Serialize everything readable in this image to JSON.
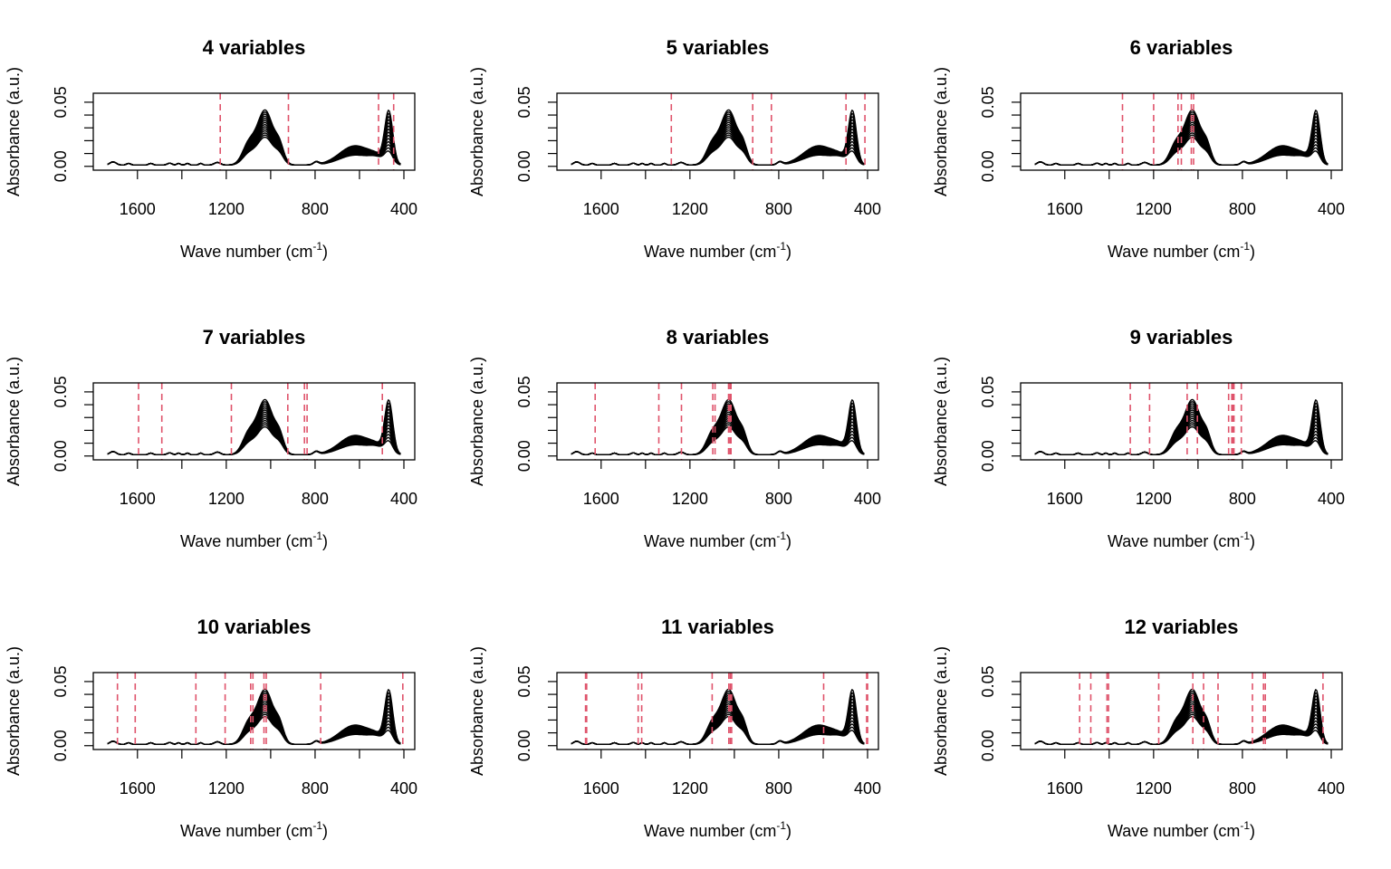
{
  "colors": {
    "spectra": "#000000",
    "selected_variables": "#DF536B",
    "background": "#FFFFFF"
  },
  "chart_data": [
    {
      "type": "line",
      "title": "4 variables",
      "xlabel": "Wave number (cm",
      "xlabel_sup": "-1",
      "xlabel_close": ")",
      "ylabel": "Absorbance (a.u.)",
      "xlim": [
        1750,
        400
      ],
      "ylim": [
        -0.003,
        0.057
      ],
      "xticks": [
        1600,
        1200,
        800,
        400
      ],
      "xtick_labels": [
        "1600",
        "1200",
        "800",
        "400"
      ],
      "yticks": [
        0.0,
        0.05
      ],
      "ytick_labels": [
        "0.00",
        "0.05"
      ],
      "minor_yticks": [
        0.01,
        0.02,
        0.03,
        0.04
      ],
      "selected_wavenumbers": [
        1227,
        920,
        514,
        446
      ]
    },
    {
      "type": "line",
      "title": "5 variables",
      "xlabel": "Wave number (cm",
      "xlabel_sup": "-1",
      "xlabel_close": ")",
      "ylabel": "Absorbance (a.u.)",
      "xlim": [
        1750,
        400
      ],
      "ylim": [
        -0.003,
        0.057
      ],
      "xticks": [
        1600,
        1200,
        800,
        400
      ],
      "xtick_labels": [
        "1600",
        "1200",
        "800",
        "400"
      ],
      "yticks": [
        0.0,
        0.05
      ],
      "ytick_labels": [
        "0.00",
        "0.05"
      ],
      "minor_yticks": [
        0.01,
        0.02,
        0.03,
        0.04
      ],
      "selected_wavenumbers": [
        1284,
        917,
        833,
        497,
        412
      ]
    },
    {
      "type": "line",
      "title": "6 variables",
      "xlabel": "Wave number (cm",
      "xlabel_sup": "-1",
      "xlabel_close": ")",
      "ylabel": "Absorbance (a.u.)",
      "xlim": [
        1750,
        400
      ],
      "ylim": [
        -0.003,
        0.057
      ],
      "xticks": [
        1600,
        1200,
        800,
        400
      ],
      "xtick_labels": [
        "1600",
        "1200",
        "800",
        "400"
      ],
      "yticks": [
        0.0,
        0.05
      ],
      "ytick_labels": [
        "0.00",
        "0.05"
      ],
      "minor_yticks": [
        0.01,
        0.02,
        0.03,
        0.04
      ],
      "selected_wavenumbers": [
        1340,
        1200,
        1090,
        1075,
        1030,
        1020
      ]
    },
    {
      "type": "line",
      "title": "7 variables",
      "xlabel": "Wave number (cm",
      "xlabel_sup": "-1",
      "xlabel_close": ")",
      "ylabel": "Absorbance (a.u.)",
      "xlim": [
        1750,
        400
      ],
      "ylim": [
        -0.003,
        0.057
      ],
      "xticks": [
        1600,
        1200,
        800,
        400
      ],
      "xtick_labels": [
        "1600",
        "1200",
        "800",
        "400"
      ],
      "yticks": [
        0.0,
        0.05
      ],
      "ytick_labels": [
        "0.00",
        "0.05"
      ],
      "minor_yticks": [
        0.01,
        0.02,
        0.03,
        0.04
      ],
      "selected_wavenumbers": [
        1595,
        1490,
        1177,
        923,
        848,
        836,
        497
      ]
    },
    {
      "type": "line",
      "title": "8 variables",
      "xlabel": "Wave number (cm",
      "xlabel_sup": "-1",
      "xlabel_close": ")",
      "ylabel": "Absorbance (a.u.)",
      "xlim": [
        1750,
        400
      ],
      "ylim": [
        -0.003,
        0.057
      ],
      "xticks": [
        1600,
        1200,
        800,
        400
      ],
      "xtick_labels": [
        "1600",
        "1200",
        "800",
        "400"
      ],
      "yticks": [
        0.0,
        0.05
      ],
      "ytick_labels": [
        "0.00",
        "0.05"
      ],
      "minor_yticks": [
        0.01,
        0.02,
        0.03,
        0.04
      ],
      "selected_wavenumbers": [
        1627,
        1340,
        1238,
        1097,
        1087,
        1026,
        1020,
        1015
      ]
    },
    {
      "type": "line",
      "title": "9 variables",
      "xlabel": "Wave number (cm",
      "xlabel_sup": "-1",
      "xlabel_close": ")",
      "ylabel": "Absorbance (a.u.)",
      "xlim": [
        1750,
        400
      ],
      "ylim": [
        -0.003,
        0.057
      ],
      "xticks": [
        1600,
        1200,
        800,
        400
      ],
      "xtick_labels": [
        "1600",
        "1200",
        "800",
        "400"
      ],
      "yticks": [
        0.0,
        0.05
      ],
      "ytick_labels": [
        "0.00",
        "0.05"
      ],
      "minor_yticks": [
        0.01,
        0.02,
        0.03,
        0.04
      ],
      "selected_wavenumbers": [
        1305,
        1218,
        1049,
        1003,
        862,
        848,
        843,
        838,
        805
      ]
    },
    {
      "type": "line",
      "title": "10 variables",
      "xlabel": "Wave number (cm",
      "xlabel_sup": "-1",
      "xlabel_close": ")",
      "ylabel": "Absorbance (a.u.)",
      "xlim": [
        1750,
        400
      ],
      "ylim": [
        -0.003,
        0.057
      ],
      "xticks": [
        1600,
        1200,
        800,
        400
      ],
      "xtick_labels": [
        "1600",
        "1200",
        "800",
        "400"
      ],
      "yticks": [
        0.0,
        0.05
      ],
      "ytick_labels": [
        "0.00",
        "0.05"
      ],
      "minor_yticks": [
        0.01,
        0.02,
        0.03,
        0.04
      ],
      "selected_wavenumbers": [
        1690,
        1610,
        1337,
        1205,
        1090,
        1080,
        1030,
        1020,
        775,
        405
      ]
    },
    {
      "type": "line",
      "title": "11 variables",
      "xlabel": "Wave number (cm",
      "xlabel_sup": "-1",
      "xlabel_close": ")",
      "ylabel": "Absorbance (a.u.)",
      "xlim": [
        1750,
        400
      ],
      "ylim": [
        -0.003,
        0.057
      ],
      "xticks": [
        1600,
        1200,
        800,
        400
      ],
      "xtick_labels": [
        "1600",
        "1200",
        "800",
        "400"
      ],
      "yticks": [
        0.0,
        0.05
      ],
      "ytick_labels": [
        "0.00",
        "0.05"
      ],
      "minor_yticks": [
        0.01,
        0.02,
        0.03,
        0.04
      ],
      "selected_wavenumbers": [
        1670,
        1665,
        1433,
        1417,
        1100,
        1025,
        1018,
        1012,
        598,
        404,
        400
      ]
    },
    {
      "type": "line",
      "title": "12 variables",
      "xlabel": "Wave number (cm",
      "xlabel_sup": "-1",
      "xlabel_close": ")",
      "ylabel": "Absorbance (a.u.)",
      "xlim": [
        1750,
        400
      ],
      "ylim": [
        -0.003,
        0.057
      ],
      "xticks": [
        1600,
        1200,
        800,
        400
      ],
      "xtick_labels": [
        "1600",
        "1200",
        "800",
        "400"
      ],
      "yticks": [
        0.0,
        0.05
      ],
      "ytick_labels": [
        "0.00",
        "0.05"
      ],
      "minor_yticks": [
        0.01,
        0.02,
        0.03,
        0.04
      ],
      "selected_wavenumbers": [
        1533,
        1483,
        1410,
        1403,
        1177,
        1023,
        975,
        910,
        755,
        705,
        697,
        437
      ]
    }
  ]
}
